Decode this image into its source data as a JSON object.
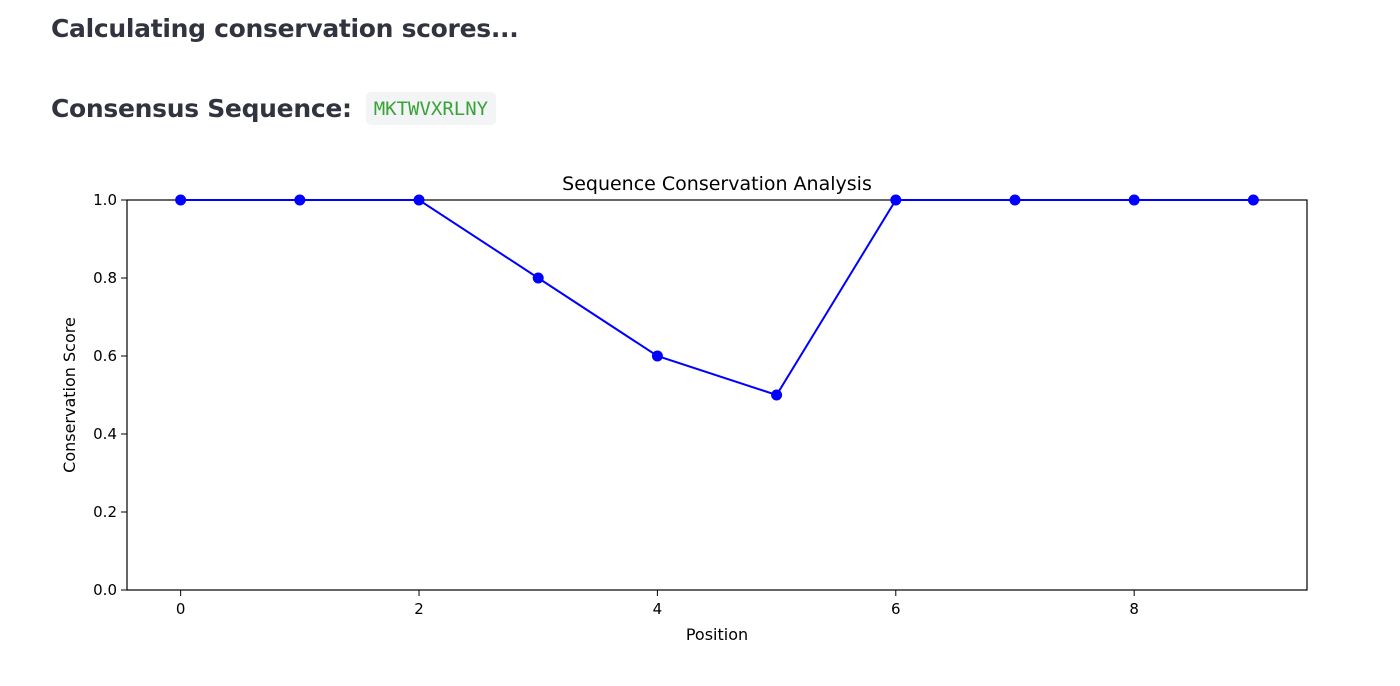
{
  "status": {
    "heading": "Calculating conservation scores..."
  },
  "consensus": {
    "label": "Consensus Sequence:",
    "sequence": "MKTWVXRLNY"
  },
  "colors": {
    "text": "#31333f",
    "code_text": "#3aa338",
    "code_bg": "#f3f4f6",
    "series": "#0000ff"
  },
  "chart_data": {
    "type": "line",
    "title": "Sequence Conservation Analysis",
    "xlabel": "Position",
    "ylabel": "Conservation Score",
    "x": [
      0,
      1,
      2,
      3,
      4,
      5,
      6,
      7,
      8,
      9
    ],
    "series": [
      {
        "values": [
          1.0,
          1.0,
          1.0,
          0.8,
          0.6,
          0.5,
          1.0,
          1.0,
          1.0,
          1.0
        ],
        "color": "#0000ff",
        "marker": "circle"
      }
    ],
    "xlim": [
      -0.45,
      9.45
    ],
    "ylim": [
      0.0,
      1.0
    ],
    "xticks": [
      0,
      2,
      4,
      6,
      8
    ],
    "yticks": [
      0.0,
      0.2,
      0.4,
      0.6,
      0.8,
      1.0
    ],
    "xtick_labels": [
      "0",
      "2",
      "4",
      "6",
      "8"
    ],
    "ytick_labels": [
      "0.0",
      "0.2",
      "0.4",
      "0.6",
      "0.8",
      "1.0"
    ],
    "grid": false,
    "legend": "none"
  }
}
